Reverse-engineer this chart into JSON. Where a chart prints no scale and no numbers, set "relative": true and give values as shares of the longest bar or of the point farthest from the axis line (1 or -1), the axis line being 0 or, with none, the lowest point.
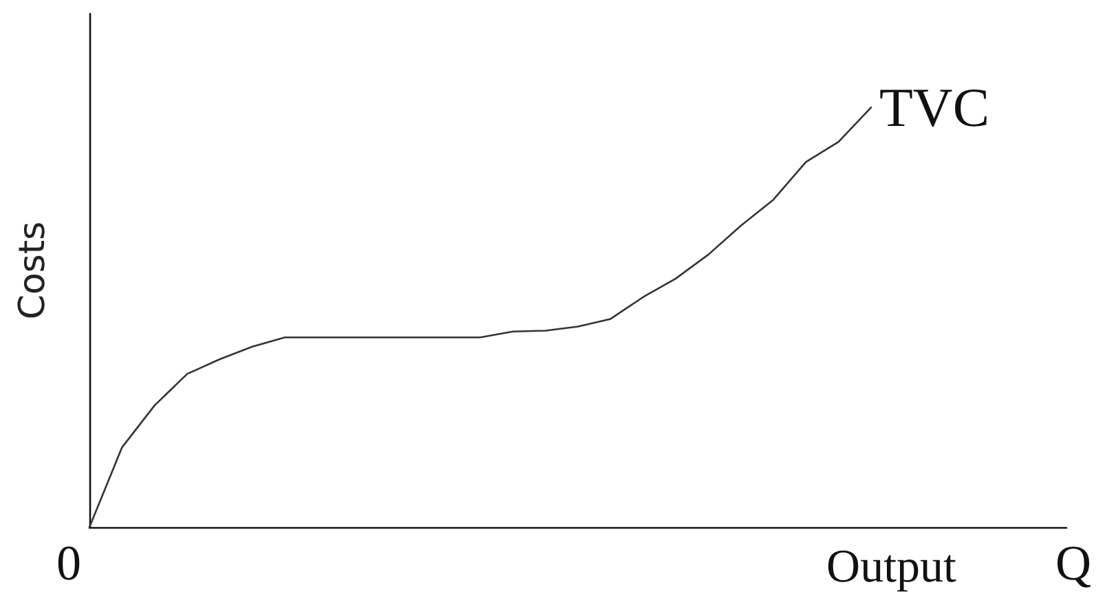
{
  "chart_data": {
    "type": "line",
    "relative": true,
    "xlabel": "Output",
    "ylabel": "Costs",
    "annotations": [
      "0",
      "Q"
    ],
    "grid": false,
    "legend": false,
    "marker": "none",
    "line_style": "solid",
    "categories": [
      null,
      null,
      null,
      null,
      null,
      null,
      null,
      null,
      null,
      null,
      null,
      null,
      null,
      null,
      null,
      null,
      null,
      null,
      null,
      null,
      null,
      null,
      null,
      null,
      null,
      null,
      null,
      null,
      null,
      null,
      null
    ],
    "series": [
      {
        "name": "TVC",
        "color": "#333333",
        "values": [
          0,
          0.19,
          0.29,
          0.365,
          0.4,
          0.43,
          0.452,
          0.452,
          0.452,
          0.452,
          0.452,
          0.452,
          0.452,
          0.466,
          0.468,
          0.478,
          0.496,
          0.548,
          0.592,
          0.649,
          0.718,
          0.78,
          0.87,
          0.918,
          1,
          null,
          null,
          null,
          null,
          null,
          null
        ]
      }
    ]
  }
}
